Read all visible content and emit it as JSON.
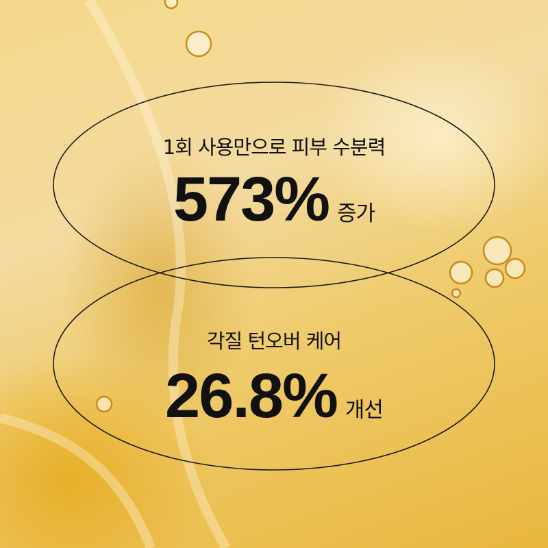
{
  "stat1": {
    "label": "1회 사용만으로 피부 수분력",
    "value": "573%",
    "unit": "증가"
  },
  "stat2": {
    "label": "각질 턴오버 케어",
    "value": "26.8%",
    "unit": "개선"
  },
  "colors": {
    "background": "#f0cf78",
    "text": "#111111",
    "outline": "#1a1a1a"
  }
}
